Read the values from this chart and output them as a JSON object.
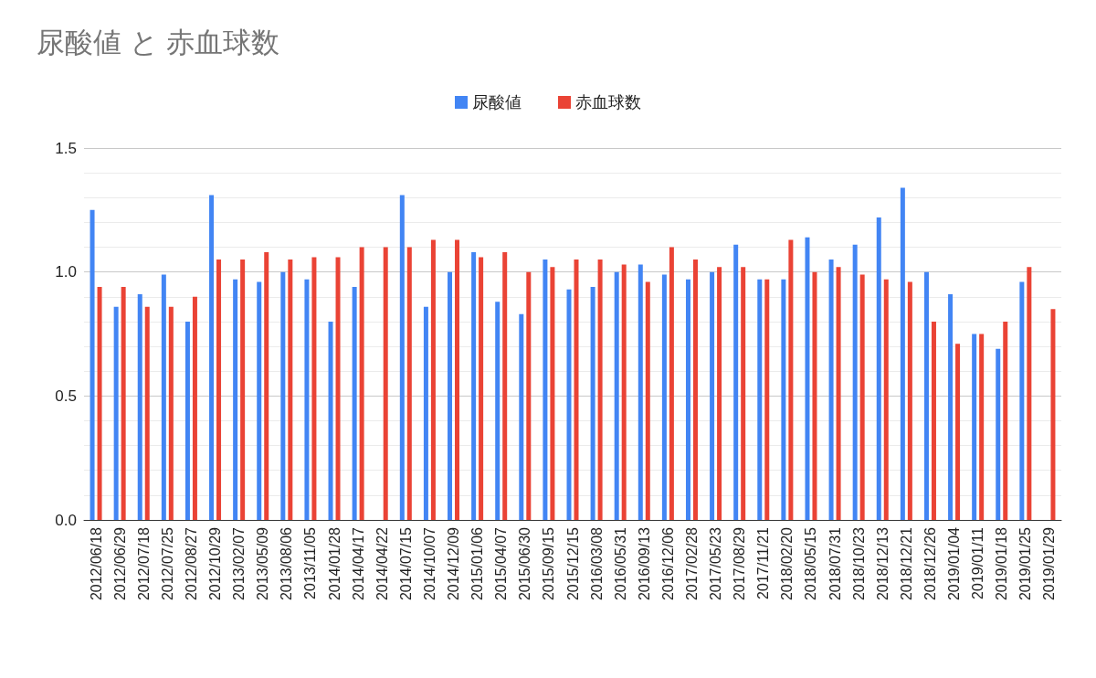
{
  "chart_data": {
    "type": "bar",
    "title": "尿酸値 と 赤血球数",
    "categories": [
      "2012/06/18",
      "2012/06/29",
      "2012/07/18",
      "2012/07/25",
      "2012/08/27",
      "2012/10/29",
      "2013/02/07",
      "2013/05/09",
      "2013/08/06",
      "2013/11/05",
      "2014/01/28",
      "2014/04/17",
      "2014/04/22",
      "2014/07/15",
      "2014/10/07",
      "2014/12/09",
      "2015/01/06",
      "2015/04/07",
      "2015/06/30",
      "2015/09/15",
      "2015/12/15",
      "2016/03/08",
      "2016/05/31",
      "2016/09/13",
      "2016/12/06",
      "2017/02/28",
      "2017/05/23",
      "2017/08/29",
      "2017/11/21",
      "2018/02/20",
      "2018/05/15",
      "2018/07/31",
      "2018/10/23",
      "2018/12/13",
      "2018/12/21",
      "2018/12/26",
      "2019/01/04",
      "2019/01/11",
      "2019/01/18",
      "2019/01/25",
      "2019/01/29"
    ],
    "series": [
      {
        "name": "尿酸値",
        "color": "#4285f4",
        "values": [
          1.25,
          0.86,
          0.91,
          0.99,
          0.8,
          1.31,
          0.97,
          0.96,
          1.0,
          0.97,
          0.8,
          0.94,
          null,
          1.31,
          0.86,
          1.0,
          1.08,
          0.88,
          0.83,
          1.05,
          0.93,
          0.94,
          1.0,
          1.03,
          0.99,
          0.97,
          1.0,
          1.11,
          0.97,
          0.97,
          1.14,
          1.05,
          1.11,
          1.22,
          1.34,
          1.0,
          0.91,
          0.75,
          0.69,
          0.96,
          null
        ]
      },
      {
        "name": "赤血球数",
        "color": "#ea4335",
        "values": [
          0.94,
          0.94,
          0.86,
          0.86,
          0.9,
          1.05,
          1.05,
          1.08,
          1.05,
          1.06,
          1.06,
          1.1,
          1.1,
          1.1,
          1.13,
          1.13,
          1.06,
          1.08,
          1.0,
          1.02,
          1.05,
          1.05,
          1.03,
          0.96,
          1.1,
          1.05,
          1.02,
          1.02,
          0.97,
          1.13,
          1.0,
          1.02,
          0.99,
          0.97,
          0.96,
          0.8,
          0.71,
          0.75,
          0.8,
          1.02,
          0.85
        ]
      }
    ],
    "ylim": [
      0,
      1.5
    ],
    "yticks": [
      {
        "value": 0,
        "label": "0.0"
      },
      {
        "value": 0.1,
        "label": null
      },
      {
        "value": 0.2,
        "label": null
      },
      {
        "value": 0.3,
        "label": null
      },
      {
        "value": 0.4,
        "label": null
      },
      {
        "value": 0.5,
        "label": "0.5"
      },
      {
        "value": 0.6,
        "label": null
      },
      {
        "value": 0.7,
        "label": null
      },
      {
        "value": 0.8,
        "label": null
      },
      {
        "value": 0.9,
        "label": null
      },
      {
        "value": 1,
        "label": "1.0"
      },
      {
        "value": 1.1,
        "label": null
      },
      {
        "value": 1.2,
        "label": null
      },
      {
        "value": 1.3,
        "label": null
      },
      {
        "value": 1.4,
        "label": null
      },
      {
        "value": 1.5,
        "label": "1.5"
      }
    ],
    "grid": "y",
    "legend": "top"
  }
}
